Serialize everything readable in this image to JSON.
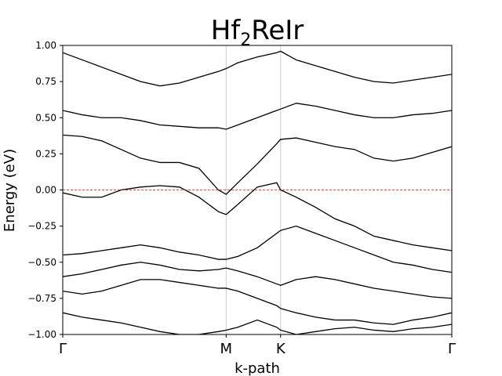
{
  "chart_data": {
    "type": "line",
    "title_main": "Hf",
    "title_sub": "2",
    "title_rest": "ReIr",
    "xlabel": "k-path",
    "ylabel": "Energy (eV)",
    "ylim": [
      -1.0,
      1.0
    ],
    "yticks": [
      -1.0,
      -0.75,
      -0.5,
      -0.25,
      0.0,
      0.25,
      0.5,
      0.75,
      1.0
    ],
    "ytick_labels": [
      "−1.00",
      "−0.75",
      "−0.50",
      "−0.25",
      "0.00",
      "0.25",
      "0.50",
      "0.75",
      "1.00"
    ],
    "xlim": [
      0,
      1
    ],
    "high_symmetry_points": [
      {
        "label": "Γ",
        "x": 0.0
      },
      {
        "label": "M",
        "x": 0.42
      },
      {
        "label": "K",
        "x": 0.56
      },
      {
        "label": "Γ",
        "x": 1.0
      }
    ],
    "fermi_level": 0.0,
    "colors": {
      "bands": "#000000",
      "fermi": "#ff0000",
      "vlines": "#cccccc"
    },
    "series": [
      {
        "x": [
          0,
          0.05,
          0.1,
          0.15,
          0.2,
          0.25,
          0.3,
          0.35,
          0.4,
          0.42,
          0.45,
          0.5,
          0.55,
          0.56,
          0.6,
          0.65,
          0.7,
          0.75,
          0.8,
          0.85,
          0.9,
          0.95,
          1.0
        ],
        "values": [
          0.38,
          0.37,
          0.34,
          0.28,
          0.22,
          0.19,
          0.19,
          0.15,
          0.0,
          -0.03,
          0.05,
          0.18,
          0.32,
          0.35,
          0.36,
          0.33,
          0.3,
          0.28,
          0.22,
          0.2,
          0.22,
          0.26,
          0.3
        ]
      },
      {
        "x": [
          0,
          0.05,
          0.1,
          0.15,
          0.2,
          0.25,
          0.3,
          0.35,
          0.4,
          0.42,
          0.45,
          0.5,
          0.55,
          0.56,
          0.6,
          0.65,
          0.7,
          0.75,
          0.8,
          0.85,
          0.9,
          0.95,
          1.0
        ],
        "values": [
          -0.02,
          -0.05,
          -0.05,
          0.0,
          0.02,
          0.03,
          0.02,
          -0.05,
          -0.15,
          -0.17,
          -0.1,
          0.02,
          0.05,
          0.0,
          -0.05,
          -0.12,
          -0.2,
          -0.25,
          -0.32,
          -0.35,
          -0.38,
          -0.4,
          -0.42
        ]
      },
      {
        "x": [
          0,
          0.05,
          0.1,
          0.15,
          0.2,
          0.25,
          0.3,
          0.35,
          0.4,
          0.42,
          0.45,
          0.5,
          0.55,
          0.56,
          0.6,
          0.65,
          0.7,
          0.75,
          0.8,
          0.85,
          0.9,
          0.95,
          1.0
        ],
        "values": [
          0.55,
          0.52,
          0.5,
          0.5,
          0.48,
          0.45,
          0.44,
          0.43,
          0.43,
          0.42,
          0.45,
          0.5,
          0.55,
          0.56,
          0.6,
          0.58,
          0.55,
          0.52,
          0.5,
          0.5,
          0.52,
          0.53,
          0.55
        ]
      },
      {
        "x": [
          0,
          0.05,
          0.1,
          0.15,
          0.2,
          0.25,
          0.3,
          0.35,
          0.4,
          0.42,
          0.45,
          0.5,
          0.55,
          0.56,
          0.6,
          0.65,
          0.7,
          0.75,
          0.8,
          0.85,
          0.9,
          0.95,
          1.0
        ],
        "values": [
          -0.45,
          -0.44,
          -0.42,
          -0.4,
          -0.38,
          -0.4,
          -0.43,
          -0.45,
          -0.48,
          -0.48,
          -0.46,
          -0.4,
          -0.3,
          -0.28,
          -0.25,
          -0.3,
          -0.35,
          -0.4,
          -0.45,
          -0.5,
          -0.52,
          -0.55,
          -0.57
        ]
      },
      {
        "x": [
          0,
          0.05,
          0.1,
          0.15,
          0.2,
          0.25,
          0.3,
          0.35,
          0.4,
          0.42,
          0.45,
          0.5,
          0.55,
          0.56,
          0.6,
          0.65,
          0.7,
          0.75,
          0.8,
          0.85,
          0.9,
          0.95,
          1.0
        ],
        "values": [
          -0.6,
          -0.58,
          -0.55,
          -0.52,
          -0.5,
          -0.52,
          -0.55,
          -0.56,
          -0.55,
          -0.54,
          -0.56,
          -0.6,
          -0.65,
          -0.66,
          -0.62,
          -0.6,
          -0.62,
          -0.65,
          -0.68,
          -0.7,
          -0.72,
          -0.74,
          -0.75
        ]
      },
      {
        "x": [
          0,
          0.05,
          0.1,
          0.15,
          0.2,
          0.25,
          0.3,
          0.35,
          0.4,
          0.42,
          0.45,
          0.5,
          0.55,
          0.56,
          0.6,
          0.65,
          0.7,
          0.75,
          0.8,
          0.85,
          0.9,
          0.95,
          1.0
        ],
        "values": [
          -0.7,
          -0.72,
          -0.7,
          -0.66,
          -0.62,
          -0.62,
          -0.64,
          -0.66,
          -0.68,
          -0.68,
          -0.7,
          -0.75,
          -0.8,
          -0.82,
          -0.85,
          -0.88,
          -0.9,
          -0.9,
          -0.92,
          -0.93,
          -0.9,
          -0.88,
          -0.85
        ]
      },
      {
        "x": [
          0,
          0.05,
          0.1,
          0.15,
          0.2,
          0.25,
          0.3,
          0.35,
          0.4,
          0.42,
          0.45,
          0.5,
          0.55,
          0.56,
          0.6,
          0.65,
          0.7,
          0.75,
          0.8,
          0.85,
          0.9,
          0.95,
          1.0
        ],
        "values": [
          0.95,
          0.9,
          0.85,
          0.8,
          0.75,
          0.72,
          0.74,
          0.78,
          0.82,
          0.84,
          0.88,
          0.92,
          0.95,
          0.96,
          0.9,
          0.86,
          0.82,
          0.78,
          0.75,
          0.74,
          0.76,
          0.78,
          0.8
        ]
      },
      {
        "x": [
          0,
          0.05,
          0.1,
          0.15,
          0.2,
          0.25,
          0.3,
          0.35,
          0.4,
          0.42,
          0.45,
          0.5,
          0.55,
          0.56,
          0.6,
          0.65,
          0.7,
          0.75,
          0.8,
          0.85,
          0.9,
          0.95,
          1.0
        ],
        "values": [
          -0.85,
          -0.88,
          -0.9,
          -0.92,
          -0.95,
          -0.98,
          -1.0,
          -1.0,
          -0.98,
          -0.97,
          -0.95,
          -0.9,
          -0.95,
          -0.97,
          -1.0,
          -0.98,
          -0.96,
          -0.95,
          -0.97,
          -0.98,
          -0.96,
          -0.95,
          -0.93
        ]
      }
    ]
  }
}
